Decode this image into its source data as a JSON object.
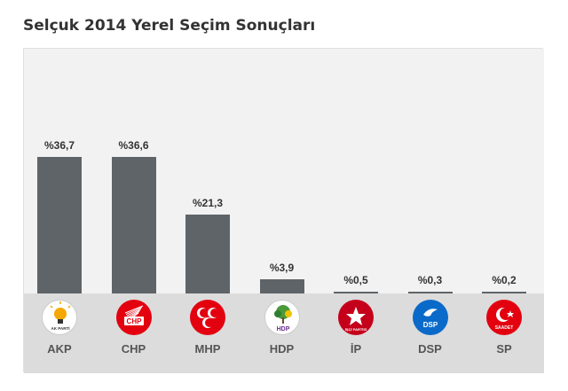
{
  "title": "Selçuk 2014 Yerel Seçim Sonuçları",
  "chart_data": {
    "type": "bar",
    "title": "Selçuk 2014 Yerel Seçim Sonuçları",
    "xlabel": "",
    "ylabel": "",
    "ylim": [
      0,
      45
    ],
    "grid": false,
    "legend": "none",
    "categories": [
      "AKP",
      "CHP",
      "MHP",
      "HDP",
      "İP",
      "DSP",
      "SP"
    ],
    "values": [
      36.7,
      36.6,
      21.3,
      3.9,
      0.5,
      0.3,
      0.2
    ],
    "data_labels": [
      "%36,7",
      "%36,6",
      "%21,3",
      "%3,9",
      "%0,5",
      "%0,3",
      "%0,2"
    ],
    "bar_color": "#5f6468"
  },
  "logos": [
    {
      "party": "AKP",
      "icon": "akp-lightbulb-icon",
      "bg": "#ffffff",
      "fg": "#f5a800",
      "text": "AK PARTİ"
    },
    {
      "party": "CHP",
      "icon": "chp-six-arrows-icon",
      "bg": "#e3000f",
      "fg": "#ffffff",
      "text": "CHP"
    },
    {
      "party": "MHP",
      "icon": "mhp-three-crescents-icon",
      "bg": "#e3000f",
      "fg": "#ffffff",
      "text": ""
    },
    {
      "party": "HDP",
      "icon": "hdp-tree-icon",
      "bg": "#ffffff",
      "fg": "#6a2c91",
      "text": "HDP"
    },
    {
      "party": "İP",
      "icon": "ip-star-icon",
      "bg": "#c4001a",
      "fg": "#ffffff",
      "text": "İŞÇİ PARTİSİ"
    },
    {
      "party": "DSP",
      "icon": "dsp-dove-icon",
      "bg": "#0a6ac9",
      "fg": "#ffffff",
      "text": "DSP"
    },
    {
      "party": "SP",
      "icon": "sp-crescent-star-icon",
      "bg": "#e3000f",
      "fg": "#ffffff",
      "text": "SAADET"
    }
  ]
}
